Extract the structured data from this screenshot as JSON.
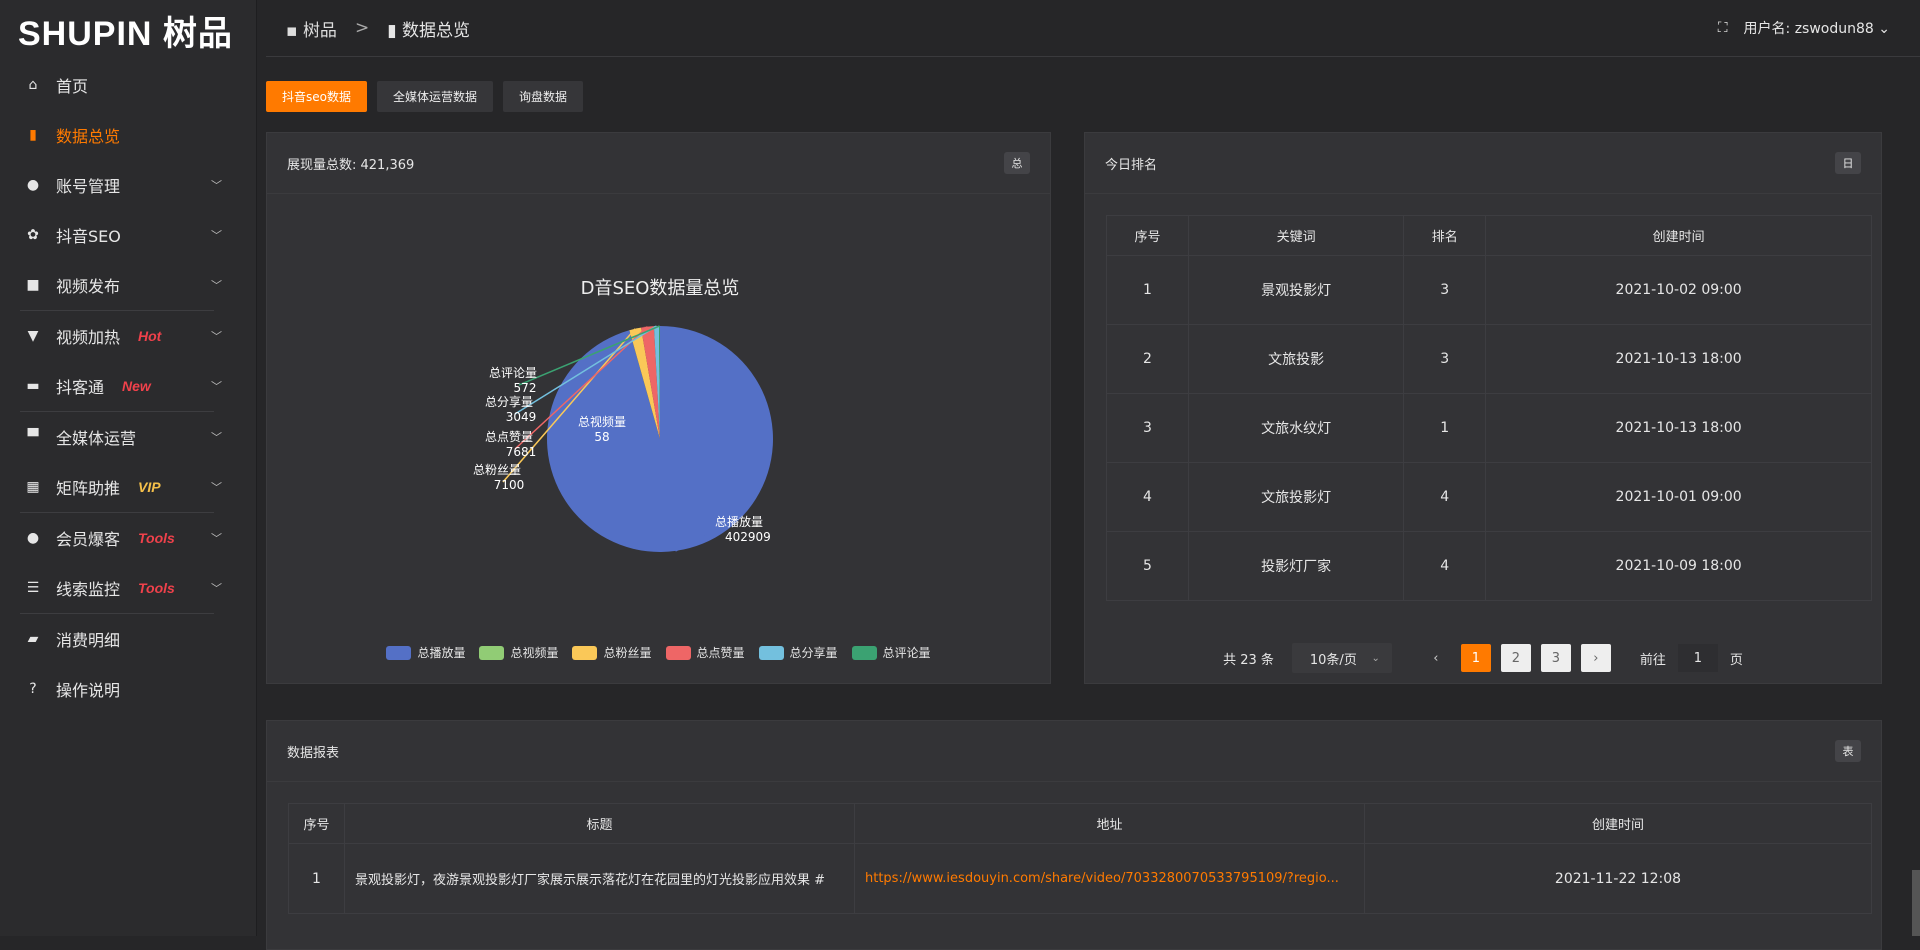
{
  "logo": "SHUPIN 树品",
  "sidebar": {
    "items": [
      {
        "label": "首页",
        "icon": "home-icon",
        "glyph": "⌂",
        "active": false
      },
      {
        "label": "数据总览",
        "icon": "bar-chart-icon",
        "glyph": "▮",
        "active": true
      },
      {
        "label": "账号管理",
        "icon": "user-icon",
        "glyph": "●",
        "chevron": true
      },
      {
        "label": "抖音SEO",
        "icon": "gear-icon",
        "glyph": "✿",
        "chevron": true
      },
      {
        "label": "视频发布",
        "icon": "camera-icon",
        "glyph": "■",
        "chevron": true,
        "divider": true
      },
      {
        "label": "视频加热",
        "icon": "monitor-icon",
        "glyph": "▼",
        "badge": "Hot",
        "badge_color": "#f0414b",
        "chevron": true
      },
      {
        "label": "抖客通",
        "icon": "chat-icon",
        "glyph": "▬",
        "badge": "New",
        "badge_color": "#f0414b",
        "chevron": true,
        "divider": true
      },
      {
        "label": "全媒体运营",
        "icon": "desktop-icon",
        "glyph": "▀",
        "chevron": true
      },
      {
        "label": "矩阵助推",
        "icon": "grid-icon",
        "glyph": "▦",
        "badge": "VIP",
        "badge_color": "#f5c04a",
        "chevron": true,
        "divider": true
      },
      {
        "label": "会员爆客",
        "icon": "user-icon",
        "glyph": "●",
        "badge": "Tools",
        "badge_color": "#f0414b",
        "chevron": true
      },
      {
        "label": "线索监控",
        "icon": "sliders-icon",
        "glyph": "☰",
        "badge": "Tools",
        "badge_color": "#f0414b",
        "chevron": true,
        "divider": true
      },
      {
        "label": "消费明细",
        "icon": "wallet-icon",
        "glyph": "▰"
      },
      {
        "label": "操作说明",
        "icon": "help-icon",
        "glyph": "?"
      }
    ]
  },
  "header": {
    "breadcrumb": [
      "树品",
      "数据总览"
    ],
    "separator": ">",
    "username_label": "用户名: zswodun88",
    "fullscreen_icon": "fullscreen-icon"
  },
  "tabs": [
    {
      "label": "抖音seo数据",
      "active": true
    },
    {
      "label": "全媒体运营数据"
    },
    {
      "label": "询盘数据"
    }
  ],
  "left_card": {
    "title": "展现量总数: 421,369",
    "tag": "总"
  },
  "chart_data": {
    "type": "pie",
    "title": "D音SEO数据量总览",
    "slices": [
      {
        "name": "总播放量",
        "value": 402909,
        "color": "#5470c6"
      },
      {
        "name": "总视频量",
        "value": 58,
        "color": "#91cc75"
      },
      {
        "name": "总粉丝量",
        "value": 7100,
        "color": "#fac858"
      },
      {
        "name": "总点赞量",
        "value": 7681,
        "color": "#ee6666"
      },
      {
        "name": "总分享量",
        "value": 3049,
        "color": "#73c0de"
      },
      {
        "name": "总评论量",
        "value": 572,
        "color": "#3ba272"
      }
    ],
    "legend_placement": "bottom"
  },
  "right_card": {
    "title": "今日排名",
    "tag": "日",
    "columns": [
      "序号",
      "关键词",
      "排名",
      "创建时间"
    ],
    "rows": [
      [
        "1",
        "景观投影灯",
        "3",
        "2021-10-02 09:00"
      ],
      [
        "2",
        "文旅投影",
        "3",
        "2021-10-13 18:00"
      ],
      [
        "3",
        "文旅水纹灯",
        "1",
        "2021-10-13 18:00"
      ],
      [
        "4",
        "文旅投影灯",
        "4",
        "2021-10-01 09:00"
      ],
      [
        "5",
        "投影灯厂家",
        "4",
        "2021-10-09 18:00"
      ]
    ],
    "pager": {
      "total": "共 23 条",
      "page_size": "10条/页",
      "pages": [
        "1",
        "2",
        "3"
      ],
      "current": "1",
      "goto_label": "前往",
      "goto_value": "1",
      "page_suffix": "页"
    }
  },
  "bottom_card": {
    "title": "数据报表",
    "tag": "表",
    "columns": [
      "序号",
      "标题",
      "地址",
      "创建时间"
    ],
    "rows": [
      [
        "1",
        "景观投影灯，夜游景观投影灯厂家展示展示落花灯在花园里的灯光投影应用效果 #",
        "https://www.iesdouyin.com/share/video/7033280070533795109/?regio...",
        "2021-11-22 12:08"
      ]
    ]
  },
  "accent": "#ff7a00"
}
